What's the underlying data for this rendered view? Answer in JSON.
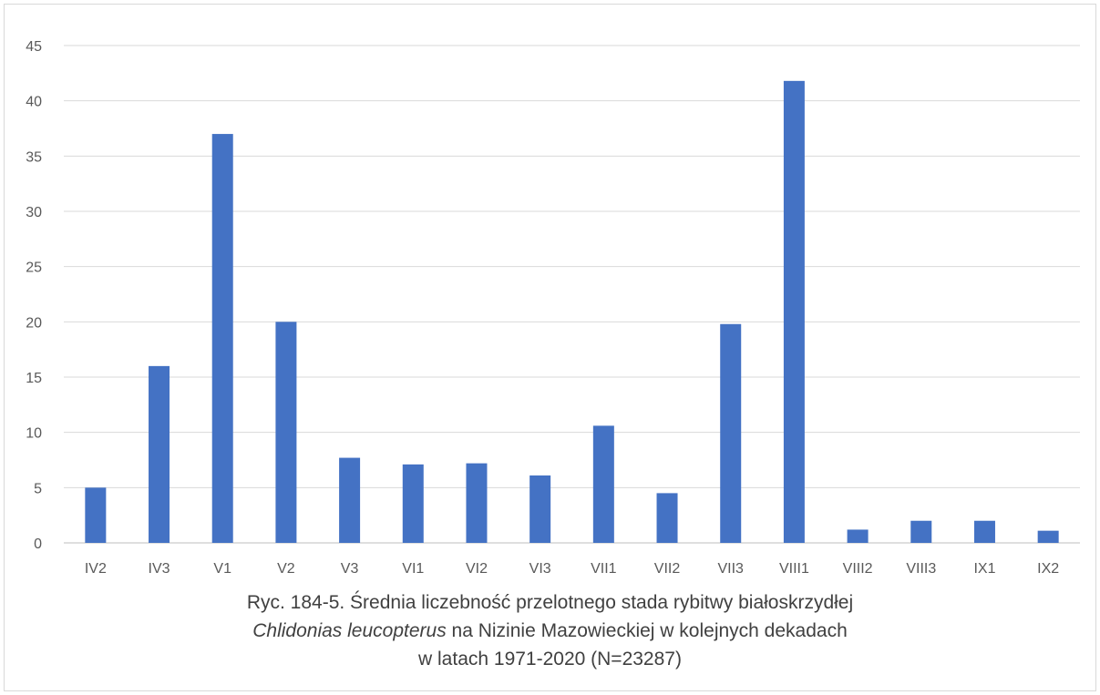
{
  "chart_data": {
    "type": "bar",
    "categories": [
      "IV2",
      "IV3",
      "V1",
      "V2",
      "V3",
      "VI1",
      "VI2",
      "VI3",
      "VII1",
      "VII2",
      "VII3",
      "VIII1",
      "VIII2",
      "VIII3",
      "IX1",
      "IX2"
    ],
    "values": [
      5,
      16,
      37,
      20,
      7.7,
      7.1,
      7.2,
      6.1,
      10.6,
      4.5,
      19.8,
      41.8,
      1.2,
      2.0,
      2.0,
      1.1
    ],
    "ylim": [
      0,
      45
    ],
    "yticks": [
      "0",
      "5",
      "10",
      "15",
      "20",
      "25",
      "30",
      "35",
      "40",
      "45"
    ],
    "grid": true,
    "legend": "none",
    "bar_color": "#4472c4",
    "caption": {
      "line1": "Ryc. 184-5.  Średnia liczebność przelotnego stada rybitwy białoskrzydłej",
      "line2_italic": "Chlidonias leucopterus",
      "line2_rest": " na Nizinie Mazowieckiej w kolejnych dekadach",
      "line3": "w latach 1971-2020  (N=23287)"
    }
  }
}
